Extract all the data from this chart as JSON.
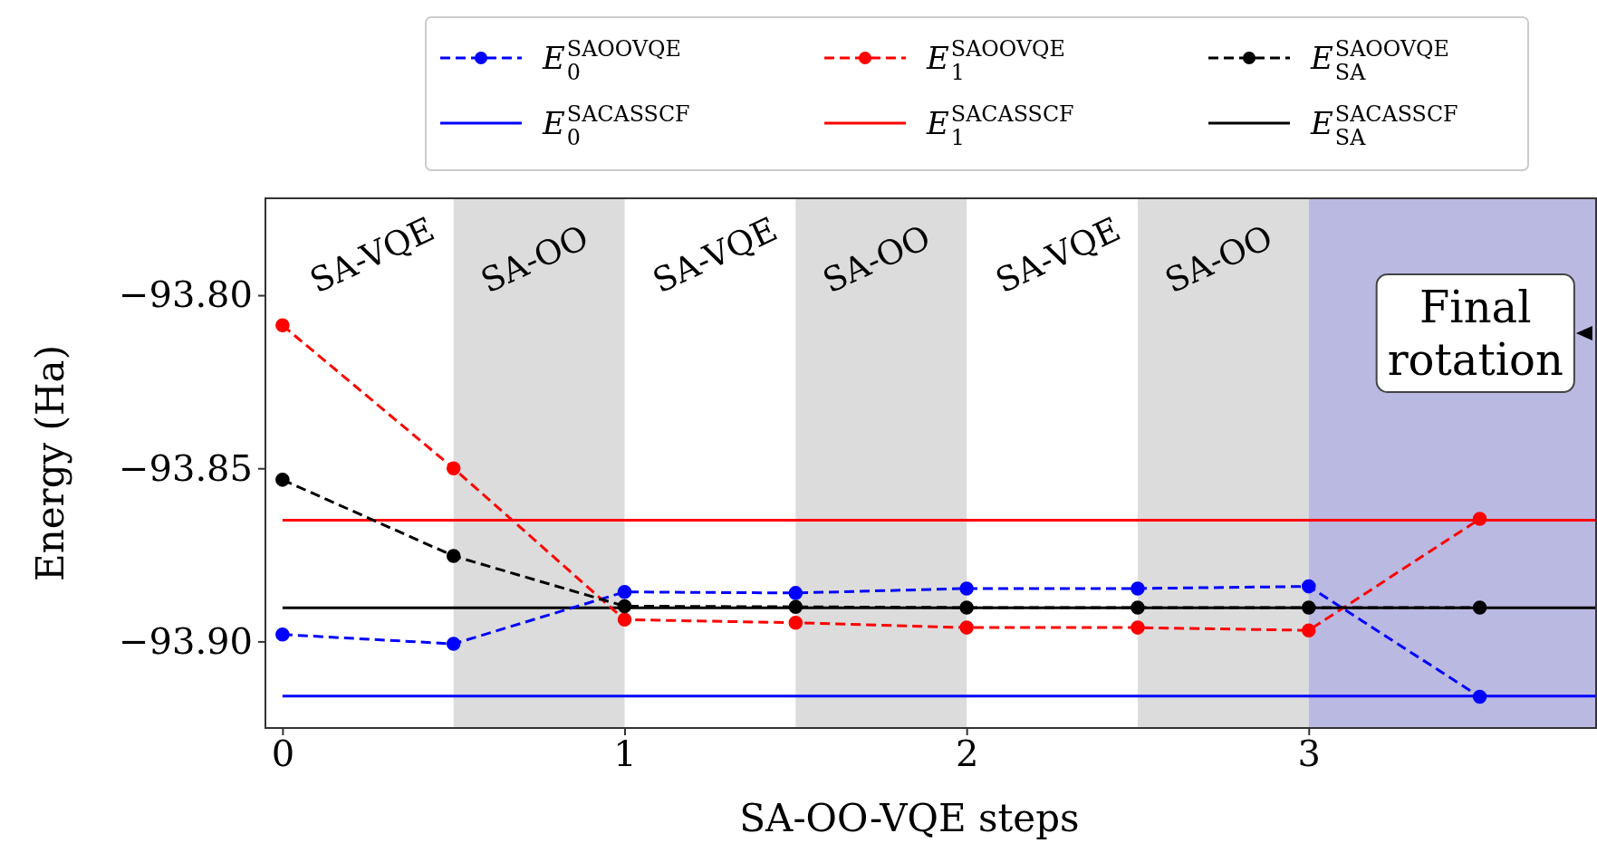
{
  "chart_data": {
    "type": "line",
    "xlabel": "SA-OO-VQE steps",
    "ylabel": "Energy (Ha)",
    "xlim": [
      -0.05,
      3.84
    ],
    "ylim": [
      -93.925,
      -93.772
    ],
    "xticks": [
      0,
      1,
      2,
      3
    ],
    "yticks": [
      {
        "value": -93.8,
        "label": "−93.80"
      },
      {
        "value": -93.85,
        "label": "−93.85"
      },
      {
        "value": -93.9,
        "label": "−93.90"
      }
    ],
    "grid": false,
    "legend": "top",
    "marker": "circle",
    "line_style": "dashed",
    "annotations": [
      "SA-VQE",
      "SA-VQE",
      "SA-VQE"
    ],
    "bands": [
      {
        "axis": "x",
        "from": 0.5,
        "to": 1,
        "label": "SA-OO",
        "color": "#dcdcdc"
      },
      {
        "axis": "x",
        "from": 1.5,
        "to": 2,
        "label": "SA-OO",
        "color": "#dcdcdc"
      },
      {
        "axis": "x",
        "from": 2.5,
        "to": 3,
        "label": "SA-OO",
        "color": "#dcdcdc"
      },
      {
        "axis": "x",
        "from": 3,
        "to": 3.84,
        "label": "Final rotation",
        "color": "#b9b9e2"
      }
    ],
    "series": [
      {
        "name": "E$_{0}$$^{SAOOVQE}$",
        "color": "#0000ff",
        "x": [
          0,
          0.5,
          1,
          1.5,
          2,
          2.5,
          3,
          3.5
        ],
        "values": [
          -93.898,
          -93.9007,
          -93.8857,
          -93.886,
          -93.8847,
          -93.8847,
          -93.8841,
          -93.916
        ]
      },
      {
        "name": "E$_{1}$$^{SAOOVQE}$",
        "color": "#ff0000",
        "x": [
          0,
          0.5,
          1,
          1.5,
          2,
          2.5,
          3,
          3.5
        ],
        "values": [
          -93.8087,
          -93.85,
          -93.8937,
          -93.8946,
          -93.896,
          -93.896,
          -93.8968,
          -93.8646
        ]
      },
      {
        "name": "E$_{SA}$$^{SAOOVQE}$",
        "color": "#000000",
        "x": [
          0,
          0.5,
          1,
          1.5,
          2,
          2.5,
          3,
          3.5
        ],
        "values": [
          -93.8533,
          -93.8753,
          -93.8898,
          -93.89,
          -93.8902,
          -93.8902,
          -93.8902,
          -93.8902
        ]
      },
      {
        "name": "E$_{0}$$^{SACASSCF}$",
        "color": "#0000ff",
        "marker": "none",
        "line_style": "solid",
        "x": [
          0,
          3.84
        ],
        "values": [
          -93.9158,
          -93.9158
        ]
      },
      {
        "name": "E$_{1}$$^{SACASSCF}$",
        "color": "#ff0000",
        "marker": "none",
        "line_style": "solid",
        "x": [
          0,
          3.84
        ],
        "values": [
          -93.865,
          -93.865
        ]
      },
      {
        "name": "E$_{SA}$$^{SACASSCF}$",
        "color": "#000000",
        "marker": "none",
        "line_style": "solid",
        "x": [
          0,
          3.84
        ],
        "values": [
          -93.8903,
          -93.8903
        ]
      }
    ]
  }
}
